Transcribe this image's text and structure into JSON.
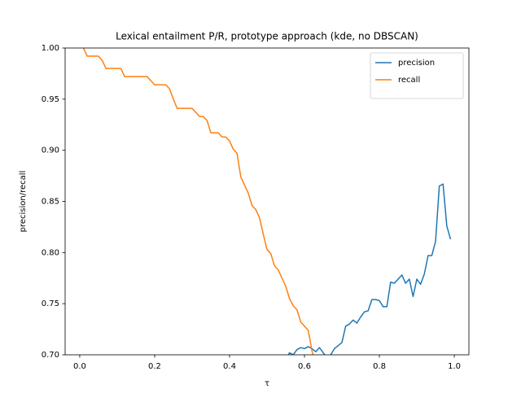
{
  "chart_data": {
    "type": "line",
    "title": "Lexical entailment P/R, prototype approach (kde, no DBSCAN)",
    "xlabel": "τ",
    "ylabel": "precision/recall",
    "xlim": [
      -0.039,
      1.039
    ],
    "ylim": [
      0.7,
      1.0
    ],
    "xticks": [
      {
        "value": 0,
        "label": "0.0"
      },
      {
        "value": 0.2,
        "label": "0.2"
      },
      0.4,
      0.6,
      0.8,
      {
        "value": 1,
        "label": "1.0"
      }
    ],
    "yticks": [
      {
        "value": 0.7,
        "label": "0.70"
      },
      0.75,
      {
        "value": 0.8,
        "label": "0.80"
      },
      0.85,
      {
        "value": 0.9,
        "label": "0.90"
      },
      0.95,
      {
        "value": 1,
        "label": "1.00"
      }
    ],
    "legend": "upper right",
    "series": [
      {
        "name": "precision",
        "color": "#1f77b4",
        "x": [
          0.55,
          0.56,
          0.57,
          0.58,
          0.59,
          0.6,
          0.61,
          0.62,
          0.63,
          0.64,
          0.65,
          0.66,
          0.67,
          0.68,
          0.69,
          0.7,
          0.71,
          0.72,
          0.73,
          0.74,
          0.75,
          0.76,
          0.77,
          0.78,
          0.79,
          0.8,
          0.81,
          0.82,
          0.83,
          0.84,
          0.85,
          0.86,
          0.87,
          0.88,
          0.89,
          0.9,
          0.91,
          0.92,
          0.93,
          0.94,
          0.95,
          0.96,
          0.97,
          0.98,
          0.99
        ],
        "values": [
          0.695,
          0.702,
          0.7,
          0.705,
          0.707,
          0.706,
          0.708,
          0.706,
          0.703,
          0.707,
          0.702,
          0.697,
          0.7,
          0.706,
          0.709,
          0.712,
          0.728,
          0.73,
          0.734,
          0.731,
          0.737,
          0.742,
          0.743,
          0.754,
          0.754,
          0.753,
          0.747,
          0.747,
          0.771,
          0.77,
          0.774,
          0.778,
          0.77,
          0.774,
          0.757,
          0.774,
          0.769,
          0.779,
          0.797,
          0.797,
          0.811,
          0.865,
          0.867,
          0.826,
          0.813
        ]
      },
      {
        "name": "recall",
        "color": "#ff7f0e",
        "x": [
          0.01,
          0.02,
          0.03,
          0.04,
          0.05,
          0.06,
          0.07,
          0.08,
          0.09,
          0.1,
          0.11,
          0.12,
          0.13,
          0.14,
          0.15,
          0.16,
          0.17,
          0.18,
          0.19,
          0.2,
          0.21,
          0.22,
          0.23,
          0.24,
          0.25,
          0.26,
          0.27,
          0.28,
          0.29,
          0.3,
          0.31,
          0.32,
          0.33,
          0.34,
          0.35,
          0.36,
          0.37,
          0.38,
          0.39,
          0.4,
          0.41,
          0.42,
          0.43,
          0.44,
          0.45,
          0.46,
          0.47,
          0.48,
          0.49,
          0.5,
          0.51,
          0.52,
          0.53,
          0.54,
          0.55,
          0.56,
          0.57,
          0.58,
          0.59,
          0.6,
          0.61,
          0.62,
          0.63
        ],
        "values": [
          1.0,
          0.992,
          0.992,
          0.992,
          0.992,
          0.988,
          0.98,
          0.98,
          0.98,
          0.98,
          0.98,
          0.972,
          0.972,
          0.972,
          0.972,
          0.972,
          0.972,
          0.972,
          0.968,
          0.964,
          0.964,
          0.964,
          0.964,
          0.96,
          0.95,
          0.941,
          0.941,
          0.941,
          0.941,
          0.941,
          0.937,
          0.933,
          0.933,
          0.929,
          0.917,
          0.917,
          0.917,
          0.913,
          0.913,
          0.909,
          0.901,
          0.897,
          0.874,
          0.866,
          0.858,
          0.846,
          0.842,
          0.834,
          0.818,
          0.803,
          0.799,
          0.787,
          0.783,
          0.775,
          0.767,
          0.755,
          0.748,
          0.744,
          0.732,
          0.728,
          0.724,
          0.704,
          0.69
        ]
      }
    ]
  }
}
